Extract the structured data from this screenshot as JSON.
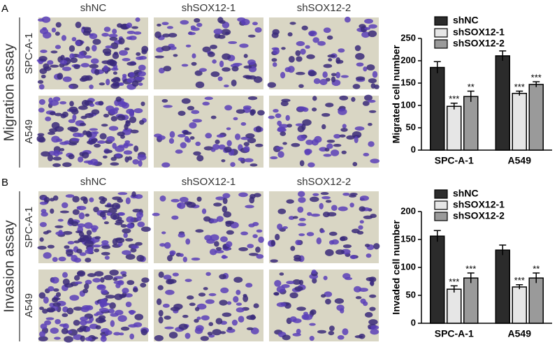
{
  "panels": [
    {
      "label": "A",
      "assay": "Migration assay",
      "columns": [
        "shNC",
        "shSOX12-1",
        "shSOX12-2"
      ],
      "rows": [
        "SPC-A-1",
        "A549"
      ]
    },
    {
      "label": "B",
      "assay": "Invasion assay",
      "columns": [
        "shNC",
        "shSOX12-1",
        "shSOX12-2"
      ],
      "rows": [
        "SPC-A-1",
        "A549"
      ]
    }
  ],
  "chart_data": [
    {
      "type": "bar",
      "ylabel": "Migrated cell number",
      "categories": [
        "SPC-A-1",
        "A549"
      ],
      "series": [
        {
          "name": "shNC",
          "color": "#2b2b2b",
          "values": [
            185,
            211
          ],
          "errors": [
            13,
            11
          ]
        },
        {
          "name": "shSOX12-1",
          "color": "#e6e6e6",
          "values": [
            98,
            127
          ],
          "errors": [
            7,
            5
          ],
          "significance": [
            "***",
            "***"
          ]
        },
        {
          "name": "shSOX12-2",
          "color": "#9a9a9a",
          "values": [
            120,
            147
          ],
          "errors": [
            12,
            6
          ],
          "significance": [
            "**",
            "***"
          ]
        }
      ],
      "ylim": [
        0,
        250
      ],
      "yticks": [
        0,
        50,
        100,
        150,
        200,
        250
      ]
    },
    {
      "type": "bar",
      "ylabel": "Invaded cell number",
      "categories": [
        "SPC-A-1",
        "A549"
      ],
      "series": [
        {
          "name": "shNC",
          "color": "#2b2b2b",
          "values": [
            156,
            131
          ],
          "errors": [
            10,
            9
          ]
        },
        {
          "name": "shSOX12-1",
          "color": "#e6e6e6",
          "values": [
            61,
            65
          ],
          "errors": [
            6,
            4
          ],
          "significance": [
            "***",
            "***"
          ]
        },
        {
          "name": "shSOX12-2",
          "color": "#9a9a9a",
          "values": [
            81,
            81
          ],
          "errors": [
            9,
            9
          ],
          "significance": [
            "***",
            "**"
          ]
        }
      ],
      "ylim": [
        0,
        200
      ],
      "yticks": [
        0,
        50,
        100,
        150,
        200
      ]
    }
  ]
}
